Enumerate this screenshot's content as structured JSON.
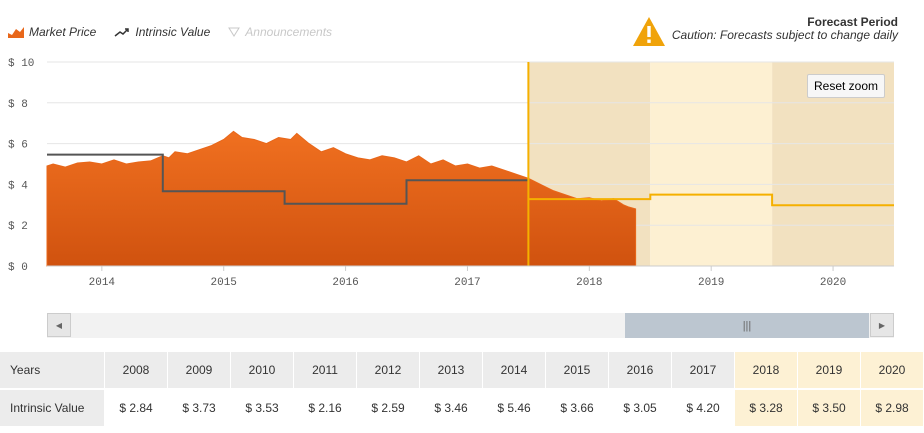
{
  "legend": {
    "market_price": "Market Price",
    "intrinsic_value": "Intrinsic Value",
    "announcements": "Announcements"
  },
  "forecast": {
    "title": "Forecast Period",
    "caution": "Caution: Forecasts subject to change daily"
  },
  "reset_zoom_label": "Reset zoom",
  "colors": {
    "market_price": "#e8671a",
    "intrinsic_value": "#555555",
    "forecast_line": "#f5b000",
    "forecast_band_dark": "#f2e1c0",
    "forecast_band_light": "#fdf0d2",
    "warning": "#f0a30a"
  },
  "chart_data": {
    "type": "area",
    "ylim": [
      0,
      10
    ],
    "yticks": [
      "$ 0",
      "$ 2",
      "$ 4",
      "$ 6",
      "$ 8",
      "$ 10"
    ],
    "xlim": [
      2013.55,
      2020.5
    ],
    "xticks": [
      "2014",
      "2015",
      "2016",
      "2017",
      "2018",
      "2019",
      "2020"
    ],
    "forecast_start": 2017.5,
    "series": [
      {
        "name": "Market Price",
        "points": [
          [
            2013.55,
            4.9
          ],
          [
            2013.6,
            5.0
          ],
          [
            2013.7,
            4.85
          ],
          [
            2013.8,
            5.05
          ],
          [
            2013.9,
            5.1
          ],
          [
            2014.0,
            5.0
          ],
          [
            2014.1,
            5.2
          ],
          [
            2014.2,
            5.0
          ],
          [
            2014.3,
            5.1
          ],
          [
            2014.4,
            5.15
          ],
          [
            2014.5,
            5.4
          ],
          [
            2014.55,
            5.3
          ],
          [
            2014.6,
            5.6
          ],
          [
            2014.7,
            5.5
          ],
          [
            2014.8,
            5.7
          ],
          [
            2014.9,
            5.9
          ],
          [
            2015.0,
            6.2
          ],
          [
            2015.08,
            6.6
          ],
          [
            2015.15,
            6.3
          ],
          [
            2015.25,
            6.2
          ],
          [
            2015.35,
            6.0
          ],
          [
            2015.45,
            6.3
          ],
          [
            2015.55,
            6.2
          ],
          [
            2015.6,
            6.5
          ],
          [
            2015.7,
            6.0
          ],
          [
            2015.8,
            5.6
          ],
          [
            2015.9,
            5.8
          ],
          [
            2016.0,
            5.5
          ],
          [
            2016.1,
            5.3
          ],
          [
            2016.2,
            5.2
          ],
          [
            2016.3,
            5.4
          ],
          [
            2016.4,
            5.3
          ],
          [
            2016.5,
            5.1
          ],
          [
            2016.6,
            5.4
          ],
          [
            2016.7,
            5.0
          ],
          [
            2016.8,
            5.2
          ],
          [
            2016.9,
            4.9
          ],
          [
            2017.0,
            5.0
          ],
          [
            2017.1,
            4.8
          ],
          [
            2017.2,
            4.9
          ],
          [
            2017.3,
            4.7
          ],
          [
            2017.4,
            4.5
          ],
          [
            2017.5,
            4.3
          ],
          [
            2017.6,
            4.0
          ],
          [
            2017.7,
            3.7
          ],
          [
            2017.8,
            3.5
          ],
          [
            2017.9,
            3.3
          ],
          [
            2018.0,
            3.35
          ],
          [
            2018.1,
            3.2
          ],
          [
            2018.2,
            3.3
          ],
          [
            2018.28,
            3.0
          ],
          [
            2018.32,
            2.9
          ],
          [
            2018.38,
            2.8
          ]
        ]
      },
      {
        "name": "Intrinsic Value",
        "steps": [
          [
            2013.55,
            5.46
          ],
          [
            2014.5,
            3.66
          ],
          [
            2015.5,
            3.05
          ],
          [
            2016.5,
            4.2
          ],
          [
            2017.5,
            4.2
          ]
        ]
      },
      {
        "name": "Intrinsic Value Forecast",
        "steps": [
          [
            2017.5,
            3.28
          ],
          [
            2018.5,
            3.5
          ],
          [
            2019.5,
            2.98
          ],
          [
            2020.5,
            2.98
          ]
        ]
      }
    ]
  },
  "table": {
    "row_labels": [
      "Years",
      "Intrinsic Value"
    ],
    "years": [
      "2008",
      "2009",
      "2010",
      "2011",
      "2012",
      "2013",
      "2014",
      "2015",
      "2016",
      "2017",
      "2018",
      "2019",
      "2020"
    ],
    "values": [
      "$ 2.84",
      "$ 3.73",
      "$ 3.53",
      "$ 2.16",
      "$ 2.59",
      "$ 3.46",
      "$ 5.46",
      "$ 3.66",
      "$ 3.05",
      "$ 4.20",
      "$ 3.28",
      "$ 3.50",
      "$ 2.98"
    ],
    "forecast_years": [
      "2018",
      "2019",
      "2020"
    ]
  }
}
